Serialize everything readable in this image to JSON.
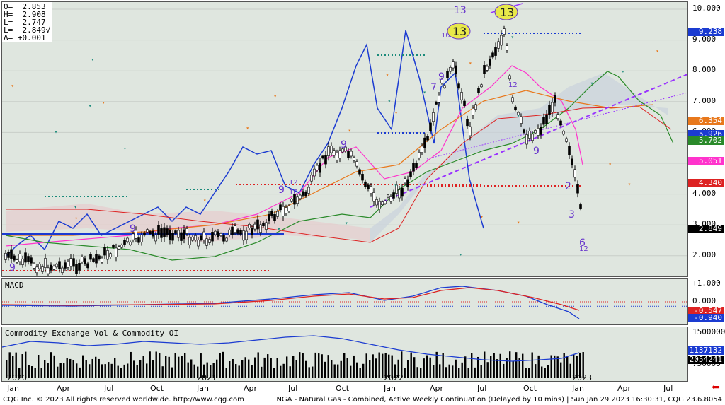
{
  "ohlc": {
    "open": "O=  2.853",
    "high": "H=  2.908",
    "low": "L=  2.747",
    "last": "L=  2.849√",
    "delta": "Δ= +0.001"
  },
  "price_axis": {
    "ticks": [
      "10.000",
      "9.000",
      "8.000",
      "7.000",
      "6.000",
      "5.000",
      "4.000",
      "3.000",
      "2.000"
    ],
    "tags": [
      {
        "value": "9.238",
        "color": "#1b3bd1"
      },
      {
        "value": "6.354",
        "color": "#e8781c"
      },
      {
        "value": "5.926",
        "color": "#1b3bd1"
      },
      {
        "value": "5.702",
        "color": "#2a8a2a"
      },
      {
        "value": "5.051",
        "color": "#ff33cc"
      },
      {
        "value": "4.340",
        "color": "#dd2222"
      },
      {
        "value": "2.849",
        "color": "#000000"
      }
    ]
  },
  "macd": {
    "title": "MACD",
    "ticks": [
      "+1.000",
      "0.000"
    ],
    "tags": [
      {
        "value": "-0.547",
        "color": "#dd2222"
      },
      {
        "value": "-0.940",
        "color": "#1b3bd1"
      }
    ]
  },
  "volume": {
    "title": "Commodity Exchange Vol & Commodity OI",
    "ticks": [
      "1500000",
      "750000"
    ],
    "tags": [
      {
        "value": "1137132",
        "color": "#1b3bd1"
      },
      {
        "value": "2054241",
        "color": "#000000"
      }
    ]
  },
  "x_axis": {
    "years": [
      "2020",
      "2021",
      "2022",
      "2023"
    ],
    "months": [
      "Jan",
      "Apr",
      "Jul",
      "Oct",
      "Jan",
      "Apr",
      "Jul",
      "Oct",
      "Jan",
      "Apr",
      "Jul",
      "Oct",
      "Jan",
      "Apr",
      "Jul"
    ]
  },
  "annotations": {
    "circle_13_a": "13",
    "circle_13_b": "13"
  },
  "footer": {
    "left": "CQG Inc. © 2023 All rights reserved worldwide. http://www.cqg.com",
    "right": "NGA - Natural Gas - Combined, Active Weekly Continuation (Delayed by 10 mins) | Sun Jan 29 2023 16:30:31, CQG 23.6.8054"
  },
  "colors": {
    "price_line": "#000000",
    "cloud_fill": "#c9d2dc",
    "blue_indicator": "#1b3bd1",
    "magenta": "#ff33cc",
    "orange": "#e8781c",
    "green": "#2a8a2a",
    "red": "#dd2222",
    "purple_trend": "#9933ff"
  }
}
